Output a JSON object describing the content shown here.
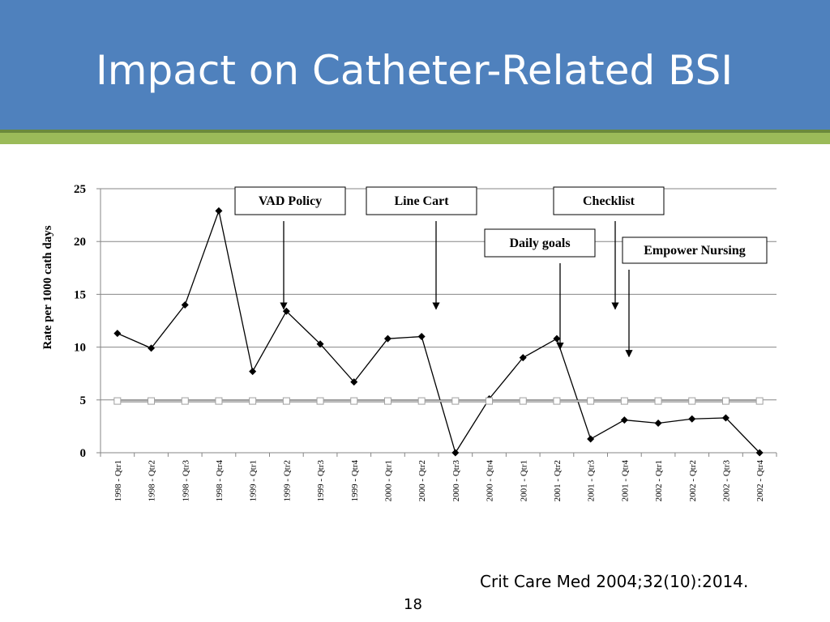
{
  "slide": {
    "title": "Impact on Catheter-Related BSI",
    "citation": "Crit Care Med 2004;32(10):2014.",
    "page_number": "18",
    "colors": {
      "header": "#4f81bd",
      "accent_bar": "#9bbb59"
    }
  },
  "chart_data": {
    "type": "line",
    "ylabel": "Rate per 1000 cath days",
    "ylim": [
      0,
      25
    ],
    "yticks": [
      0,
      5,
      10,
      15,
      20,
      25
    ],
    "grid": true,
    "categories": [
      "1998 - Qtr1",
      "1998 - Qtr2",
      "1998 - Qtr3",
      "1998 - Qtr4",
      "1999 - Qtr1",
      "1999 - Qtr2",
      "1999 - Qtr3",
      "1999 - Qtr4",
      "2000 - Qtr1",
      "2000 - Qtr2",
      "2000 - Qtr3",
      "2000 - Qtr4",
      "2001 - Qtr1",
      "2001 - Qtr2",
      "2001 - Qtr3",
      "2001 - Qtr4",
      "2002 - Qtr1",
      "2002 - Qtr2",
      "2002 - Qtr3",
      "2002 - Qtr4"
    ],
    "series": [
      {
        "values": [
          11.3,
          9.9,
          14.0,
          22.9,
          7.7,
          13.4,
          10.3,
          6.7,
          10.8,
          11.0,
          0.0,
          5.1,
          9.0,
          10.8,
          1.3,
          3.1,
          2.8,
          3.2,
          3.3,
          0.0
        ],
        "marker": "diamond",
        "color": "#000000"
      },
      {
        "values": [
          4.9,
          4.9,
          4.9,
          4.9,
          4.9,
          4.9,
          4.9,
          4.9,
          4.9,
          4.9,
          4.9,
          4.9,
          4.9,
          4.9,
          4.9,
          4.9,
          4.9,
          4.9,
          4.9,
          4.9
        ],
        "marker": "square",
        "color": "#808080"
      }
    ],
    "annotations": [
      {
        "label": "VAD Policy",
        "arrow_to": {
          "category": "1999 - Qtr2",
          "y": 13.6
        }
      },
      {
        "label": "Line Cart",
        "arrow_to": {
          "category": "2000 - Qtr3",
          "y": 13.6
        }
      },
      {
        "label": "Checklist",
        "arrow_to": {
          "category": "2001 - Qtr4",
          "y": 13.6
        }
      },
      {
        "label": "Daily goals",
        "arrow_to": {
          "category": "2001 - Qtr2",
          "y": 9.8
        }
      },
      {
        "label": "Empower Nursing",
        "arrow_to": {
          "category": "2001 - Qtr4",
          "y": 9.1
        }
      }
    ]
  }
}
